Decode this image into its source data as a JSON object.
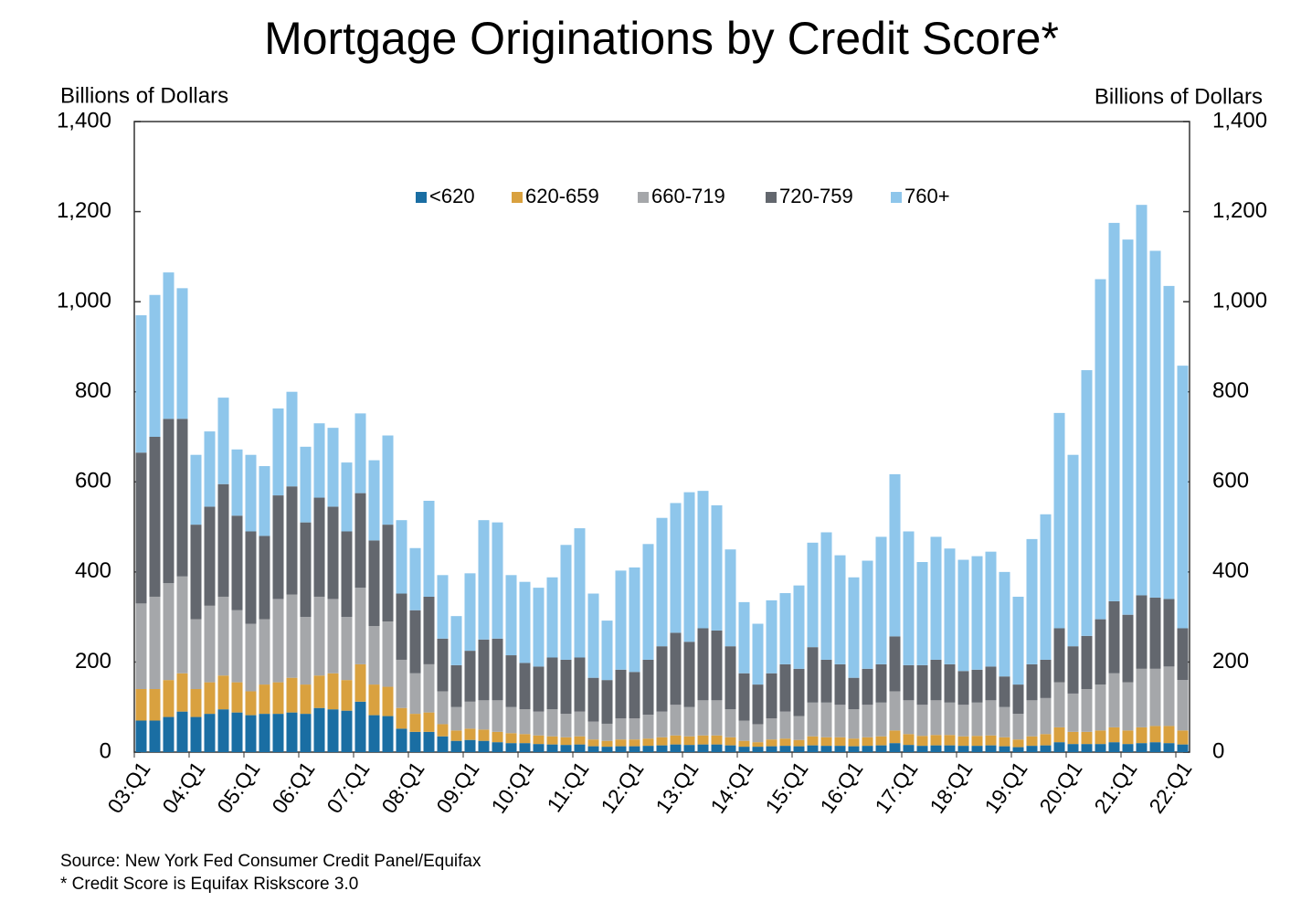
{
  "chart_data": {
    "type": "stacked_bar",
    "title": "Mortgage Originations by Credit Score*",
    "y_label": "Billions of Dollars",
    "y2_label": "Billions of Dollars",
    "source": "Source: New York Fed Consumer Credit Panel/Equifax",
    "footnote": "* Credit Score is Equifax Riskscore 3.0",
    "legend": "top",
    "ylim": [
      0,
      1400
    ],
    "yticks": [
      0,
      200,
      400,
      600,
      800,
      {
        "value": 1000,
        "label": "1,000"
      },
      {
        "value": 1200,
        "label": "1,200"
      },
      {
        "value": 1400,
        "label": "1,400"
      }
    ],
    "y2lim": [
      0,
      1400
    ],
    "y2ticks": [
      0,
      200,
      400,
      600,
      800,
      {
        "value": 1000,
        "label": "1,000"
      },
      {
        "value": 1200,
        "label": "1,200"
      },
      {
        "value": 1400,
        "label": "1,400"
      }
    ],
    "categories": [
      "03:Q1",
      null,
      null,
      null,
      "04:Q1",
      null,
      null,
      null,
      "05:Q1",
      null,
      null,
      null,
      "06:Q1",
      null,
      null,
      null,
      "07:Q1",
      null,
      null,
      null,
      "08:Q1",
      null,
      null,
      null,
      "09:Q1",
      null,
      null,
      null,
      "10:Q1",
      null,
      null,
      null,
      "11:Q1",
      null,
      null,
      null,
      "12:Q1",
      null,
      null,
      null,
      "13:Q1",
      null,
      null,
      null,
      "14:Q1",
      null,
      null,
      null,
      "15:Q1",
      null,
      null,
      null,
      "16:Q1",
      null,
      null,
      null,
      "17:Q1",
      null,
      null,
      null,
      "18:Q1",
      null,
      null,
      null,
      "19:Q1",
      null,
      null,
      null,
      "20:Q1",
      null,
      null,
      null,
      "21:Q1",
      null,
      null,
      null,
      "22:Q1"
    ],
    "series": [
      {
        "name": "<620",
        "color": "#1a6ea3",
        "values": [
          70,
          70,
          78,
          90,
          78,
          85,
          95,
          88,
          82,
          85,
          85,
          88,
          85,
          98,
          95,
          92,
          112,
          82,
          80,
          52,
          45,
          45,
          35,
          25,
          27,
          25,
          22,
          20,
          20,
          18,
          17,
          16,
          17,
          13,
          12,
          13,
          13,
          14,
          15,
          17,
          16,
          17,
          17,
          15,
          12,
          12,
          13,
          14,
          13,
          15,
          14,
          14,
          13,
          14,
          15,
          20,
          16,
          14,
          15,
          15,
          14,
          14,
          15,
          13,
          11,
          14,
          15,
          22,
          18,
          18,
          18,
          22,
          18,
          20,
          22,
          20,
          17
        ]
      },
      {
        "name": "620-659",
        "color": "#d9a13f",
        "values": [
          70,
          70,
          82,
          85,
          62,
          70,
          75,
          67,
          53,
          65,
          70,
          77,
          65,
          72,
          80,
          68,
          83,
          68,
          65,
          46,
          40,
          43,
          27,
          23,
          25,
          25,
          23,
          22,
          20,
          19,
          18,
          17,
          18,
          15,
          13,
          15,
          15,
          16,
          18,
          20,
          19,
          20,
          20,
          18,
          13,
          10,
          15,
          16,
          14,
          20,
          19,
          19,
          17,
          19,
          20,
          28,
          24,
          22,
          23,
          23,
          21,
          22,
          22,
          20,
          17,
          21,
          25,
          33,
          27,
          27,
          30,
          33,
          30,
          35,
          36,
          38,
          31
        ]
      },
      {
        "name": "660-719",
        "color": "#a5a7aa",
        "values": [
          190,
          205,
          215,
          215,
          155,
          170,
          175,
          160,
          150,
          145,
          185,
          185,
          150,
          175,
          165,
          140,
          170,
          130,
          145,
          107,
          90,
          107,
          73,
          52,
          60,
          65,
          70,
          58,
          55,
          53,
          60,
          52,
          55,
          40,
          38,
          47,
          47,
          53,
          57,
          68,
          65,
          78,
          78,
          62,
          45,
          40,
          47,
          60,
          53,
          75,
          77,
          72,
          65,
          72,
          75,
          87,
          75,
          69,
          77,
          72,
          70,
          74,
          78,
          67,
          57,
          80,
          80,
          100,
          85,
          95,
          102,
          120,
          107,
          130,
          127,
          132,
          112
        ]
      },
      {
        "name": "720-759",
        "color": "#63676e",
        "values": [
          335,
          355,
          365,
          350,
          210,
          220,
          250,
          210,
          205,
          185,
          230,
          240,
          210,
          220,
          205,
          190,
          210,
          190,
          215,
          147,
          140,
          150,
          117,
          93,
          113,
          135,
          137,
          115,
          103,
          100,
          115,
          120,
          120,
          97,
          97,
          108,
          103,
          122,
          145,
          160,
          145,
          160,
          155,
          140,
          105,
          88,
          100,
          105,
          105,
          123,
          95,
          90,
          70,
          80,
          85,
          122,
          78,
          88,
          90,
          85,
          75,
          73,
          75,
          68,
          65,
          80,
          85,
          120,
          105,
          118,
          145,
          160,
          150,
          163,
          158,
          150,
          115
        ]
      },
      {
        "name": "760+",
        "color": "#8ec6eb",
        "values": [
          305,
          315,
          325,
          290,
          155,
          167,
          192,
          147,
          170,
          155,
          193,
          210,
          168,
          165,
          175,
          153,
          177,
          178,
          198,
          163,
          138,
          213,
          141,
          109,
          172,
          265,
          258,
          178,
          180,
          175,
          178,
          255,
          287,
          187,
          132,
          220,
          232,
          257,
          285,
          288,
          332,
          305,
          278,
          215,
          158,
          135,
          162,
          158,
          185,
          232,
          283,
          242,
          223,
          240,
          283,
          360,
          297,
          229,
          273,
          257,
          247,
          252,
          255,
          232,
          195,
          278,
          323,
          478,
          425,
          590,
          755,
          840,
          833,
          867,
          770,
          695,
          583
        ]
      }
    ]
  }
}
